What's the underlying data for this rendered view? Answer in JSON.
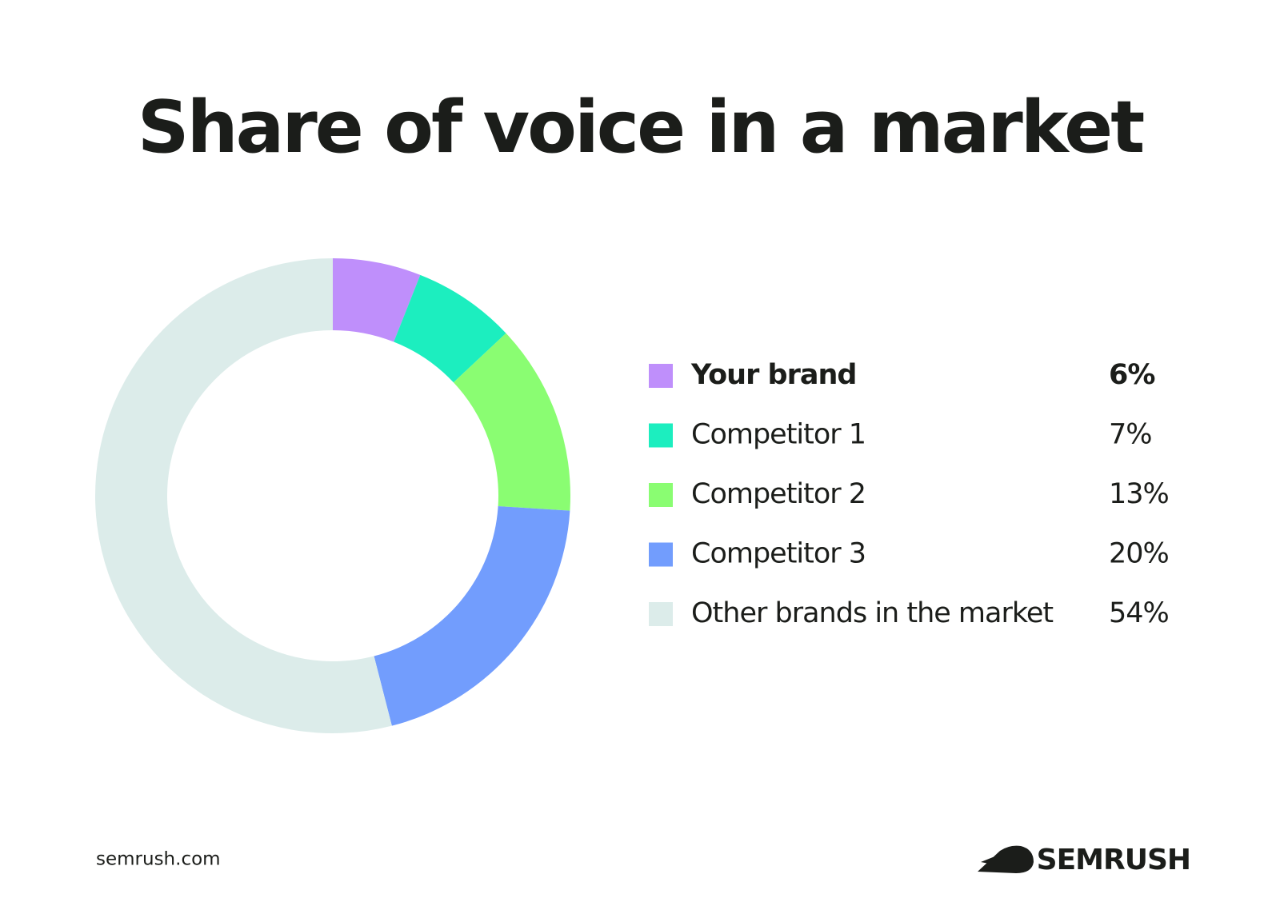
{
  "chart_data": {
    "type": "donut",
    "title": "Share of voice in a market",
    "categories": [
      "Your brand",
      "Competitor 1",
      "Competitor 2",
      "Competitor 3",
      "Other brands in the market"
    ],
    "values": [
      6,
      7,
      13,
      20,
      54
    ],
    "value_labels": [
      "6%",
      "7%",
      "13%",
      "20%",
      "54%"
    ],
    "colors": [
      "#bf8ffb",
      "#1ceebf",
      "#8afd72",
      "#729dfd",
      "#dcecea"
    ]
  },
  "footer": {
    "source": "semrush.com",
    "brand": "SEMRUSH"
  }
}
